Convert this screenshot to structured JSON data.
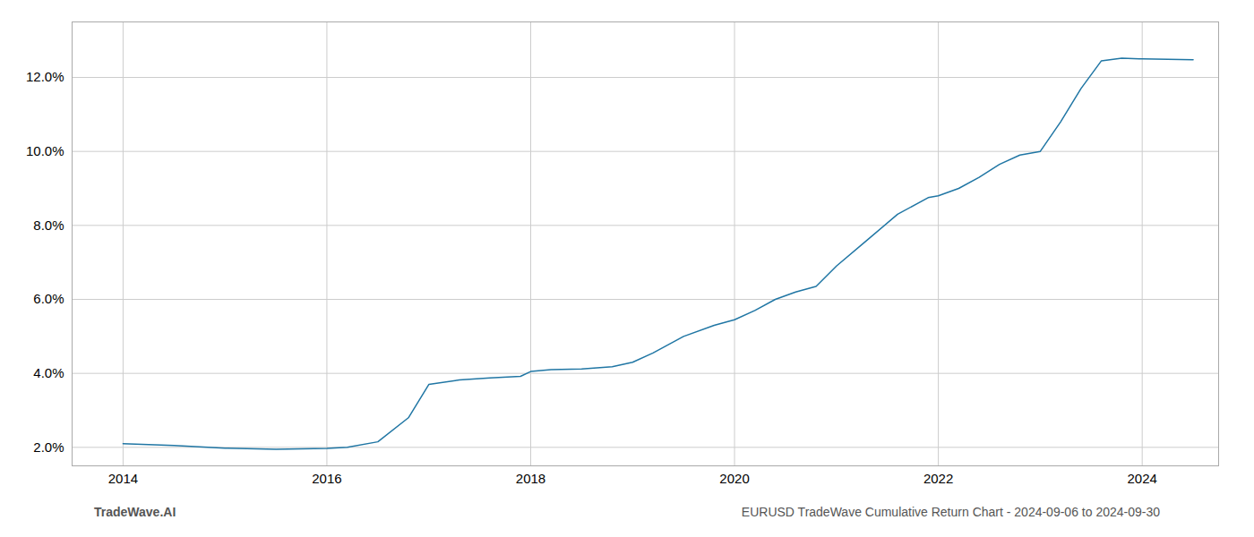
{
  "chart_data": {
    "type": "line",
    "x": [
      2014.0,
      2014.5,
      2015.0,
      2015.5,
      2016.0,
      2016.2,
      2016.5,
      2016.8,
      2017.0,
      2017.3,
      2017.6,
      2017.9,
      2018.0,
      2018.2,
      2018.5,
      2018.8,
      2019.0,
      2019.2,
      2019.5,
      2019.8,
      2020.0,
      2020.2,
      2020.4,
      2020.6,
      2020.8,
      2021.0,
      2021.3,
      2021.6,
      2021.9,
      2022.0,
      2022.2,
      2022.4,
      2022.6,
      2022.8,
      2023.0,
      2023.2,
      2023.4,
      2023.6,
      2023.8,
      2024.0,
      2024.5
    ],
    "values": [
      2.1,
      2.05,
      1.98,
      1.95,
      1.97,
      2.0,
      2.15,
      2.8,
      3.7,
      3.82,
      3.88,
      3.92,
      4.05,
      4.1,
      4.12,
      4.18,
      4.3,
      4.55,
      5.0,
      5.3,
      5.45,
      5.7,
      6.0,
      6.2,
      6.35,
      6.9,
      7.6,
      8.3,
      8.75,
      8.8,
      9.0,
      9.3,
      9.65,
      9.9,
      10.0,
      10.8,
      11.7,
      12.45,
      12.52,
      12.5,
      12.48
    ],
    "color": "#2076a4",
    "xlim": [
      2013.5,
      2024.75
    ],
    "ylim": [
      1.5,
      13.5
    ],
    "xticks": [
      2014,
      2016,
      2018,
      2020,
      2022,
      2024
    ],
    "yticks": [
      {
        "value": 2.0,
        "label": "2.0%"
      },
      {
        "value": 4.0,
        "label": "4.0%"
      },
      {
        "value": 6.0,
        "label": "6.0%"
      },
      {
        "value": 8.0,
        "label": "8.0%"
      },
      {
        "value": 10.0,
        "label": "10.0%"
      },
      {
        "value": 12.0,
        "label": "12.0%"
      }
    ],
    "grid": true,
    "annotations": [
      "TradeWave.AI",
      "EURUSD TradeWave Cumulative Return Chart - 2024-09-06 to 2024-09-30"
    ]
  }
}
